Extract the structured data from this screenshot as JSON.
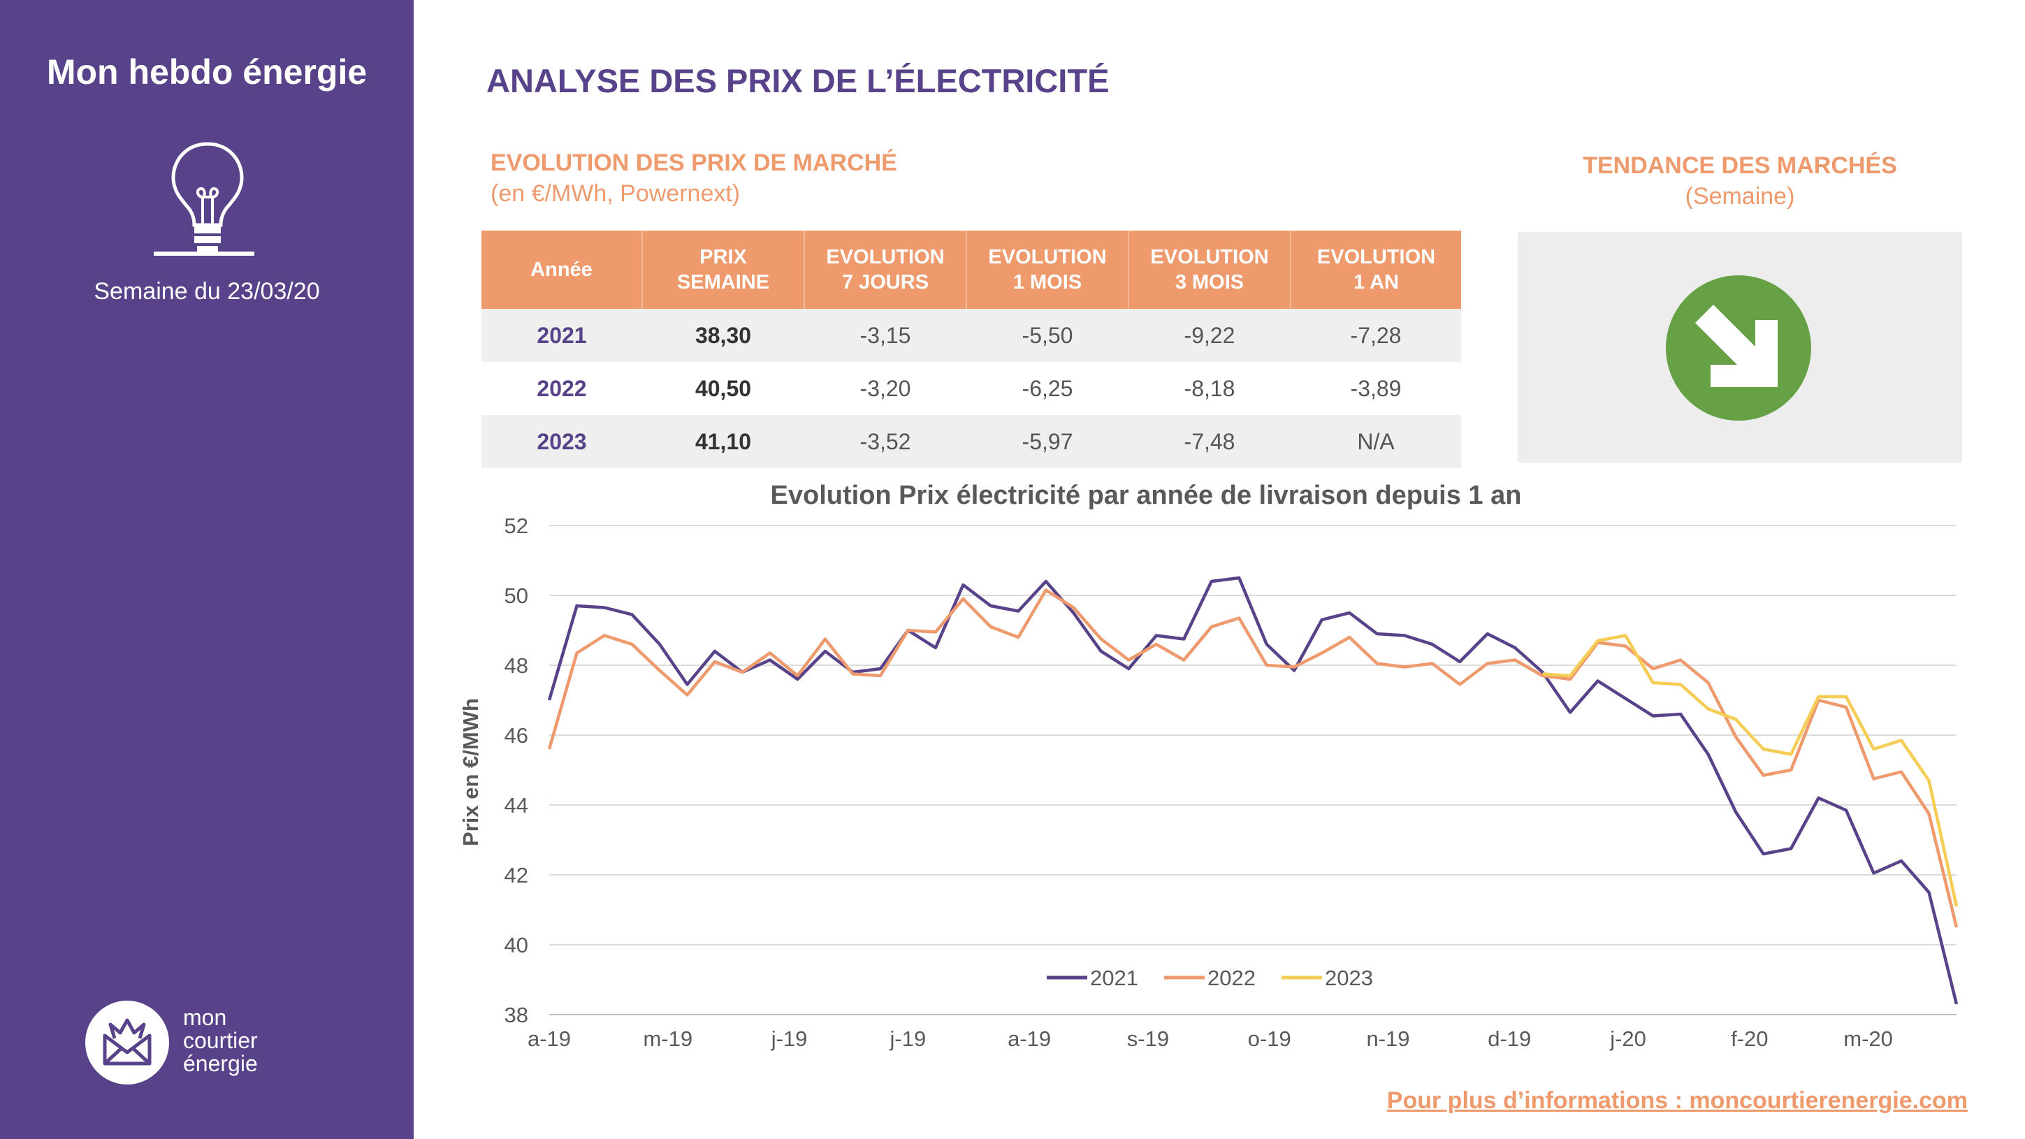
{
  "sidebar": {
    "title": "Mon hebdo énergie",
    "week": "Semaine du 23/03/20",
    "logo_lines": [
      "mon",
      "courtier",
      "énergie"
    ]
  },
  "main_title": "ANALYSE DES PRIX DE L’ÉLECTRICITÉ",
  "evolution": {
    "title": "EVOLUTION DES PRIX DE MARCHÉ",
    "subtitle": "(en €/MWh, Powernext)"
  },
  "trend": {
    "title": "TENDANCE DES MARCHÉS",
    "subtitle": "(Semaine)",
    "icon": "down-right-arrow-icon",
    "color": "#67A146"
  },
  "table": {
    "headers": [
      [
        "Année"
      ],
      [
        "PRIX",
        "SEMAINE"
      ],
      [
        "EVOLUTION",
        "7 JOURS"
      ],
      [
        "EVOLUTION",
        "1 MOIS"
      ],
      [
        "EVOLUTION",
        "3 MOIS"
      ],
      [
        "EVOLUTION",
        "1 AN"
      ]
    ],
    "rows": [
      [
        "2021",
        "38,30",
        "-3,15",
        "-5,50",
        "-9,22",
        "-7,28"
      ],
      [
        "2022",
        "40,50",
        "-3,20",
        "-6,25",
        "-8,18",
        "-3,89"
      ],
      [
        "2023",
        "41,10",
        "-3,52",
        "-5,97",
        "-7,48",
        "N/A"
      ]
    ]
  },
  "footer_link": "Pour plus d’informations : moncourtierenergie.com",
  "colors": {
    "purple": "#584289",
    "orange": "#EE9A6C",
    "yellow": "#F5CD55",
    "green": "#67A146"
  },
  "chart_data": {
    "type": "line",
    "title": "Evolution Prix électricité par année de livraison depuis 1 an",
    "xlabel": "",
    "ylabel": "Prix en €/MWh",
    "ylim": [
      38,
      52
    ],
    "yticks": [
      38,
      40,
      42,
      44,
      46,
      48,
      50,
      52
    ],
    "x_tick_labels": [
      "a-19",
      "m-19",
      "j-19",
      "j-19",
      "a-19",
      "s-19",
      "o-19",
      "n-19",
      "d-19",
      "j-20",
      "f-20",
      "m-20"
    ],
    "x_tick_weeks": [
      0,
      4.3,
      8.7,
      13,
      17.4,
      21.7,
      26.1,
      30.4,
      34.8,
      39.1,
      43.5,
      47.8
    ],
    "grid": true,
    "legend_position": "bottom",
    "weeks": 52,
    "series": [
      {
        "name": "2021",
        "color": "#584289",
        "values": [
          47.0,
          49.7,
          49.65,
          49.45,
          48.6,
          47.45,
          48.4,
          47.8,
          48.15,
          47.6,
          48.4,
          47.8,
          47.9,
          49.0,
          48.5,
          50.3,
          49.7,
          49.55,
          50.4,
          49.5,
          48.4,
          47.9,
          48.85,
          48.75,
          50.4,
          50.5,
          48.6,
          47.85,
          49.3,
          49.5,
          48.9,
          48.85,
          48.6,
          48.1,
          48.9,
          48.5,
          47.8,
          46.65,
          47.55,
          47.05,
          46.55,
          46.6,
          45.45,
          43.8,
          42.6,
          42.75,
          44.2,
          43.85,
          42.05,
          42.4,
          41.5,
          38.3
        ]
      },
      {
        "name": "2022",
        "color": "#EE9A6C",
        "values": [
          45.6,
          48.35,
          48.85,
          48.6,
          47.85,
          47.15,
          48.1,
          47.8,
          48.35,
          47.7,
          48.75,
          47.75,
          47.7,
          49.0,
          48.95,
          49.9,
          49.1,
          48.8,
          50.15,
          49.65,
          48.75,
          48.15,
          48.6,
          48.15,
          49.1,
          49.35,
          48.0,
          47.95,
          48.35,
          48.8,
          48.05,
          47.95,
          48.05,
          47.45,
          48.05,
          48.15,
          47.7,
          47.6,
          48.65,
          48.55,
          47.9,
          48.15,
          47.5,
          45.95,
          44.85,
          45.0,
          47.0,
          46.8,
          44.75,
          44.95,
          43.75,
          40.5
        ]
      },
      {
        "name": "2023",
        "color": "#F5CD55",
        "start_week": 36,
        "values": [
          47.75,
          47.7,
          48.7,
          48.85,
          47.5,
          47.45,
          46.75,
          46.45,
          45.6,
          45.45,
          47.1,
          47.1,
          45.6,
          45.85,
          44.7,
          41.1
        ]
      }
    ]
  }
}
